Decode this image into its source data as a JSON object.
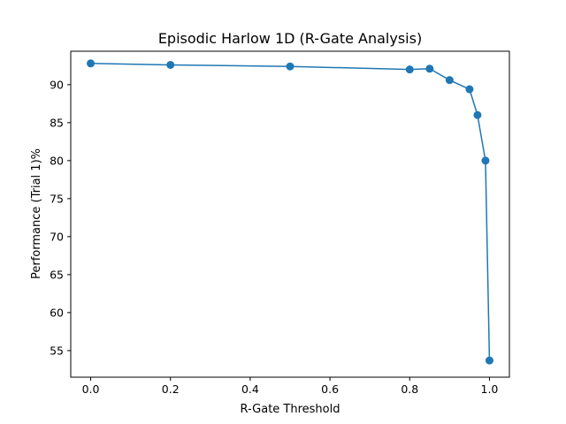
{
  "chart_data": {
    "type": "line",
    "title": "Episodic Harlow 1D (R-Gate Analysis)",
    "xlabel": "R-Gate Threshold",
    "ylabel": "Performance (Trial 1)%",
    "xlim": [
      -0.05,
      1.05
    ],
    "ylim": [
      51.5,
      94.4
    ],
    "xticks": [
      0.0,
      0.2,
      0.4,
      0.6,
      0.8,
      1.0
    ],
    "xtick_labels": [
      "0.0",
      "0.2",
      "0.4",
      "0.6",
      "0.8",
      "1.0"
    ],
    "yticks": [
      55,
      60,
      65,
      70,
      75,
      80,
      85,
      90
    ],
    "ytick_labels": [
      "55",
      "60",
      "65",
      "70",
      "75",
      "80",
      "85",
      "90"
    ],
    "grid": false,
    "legend": "none",
    "series": [
      {
        "color": "#1f77b4",
        "marker": "circle",
        "x": [
          0.0,
          0.2,
          0.5,
          0.8,
          0.85,
          0.9,
          0.95,
          0.97,
          0.99,
          1.0
        ],
        "y": [
          92.8,
          92.6,
          92.4,
          92.0,
          92.1,
          90.6,
          89.4,
          86.0,
          80.0,
          53.7
        ]
      }
    ]
  }
}
